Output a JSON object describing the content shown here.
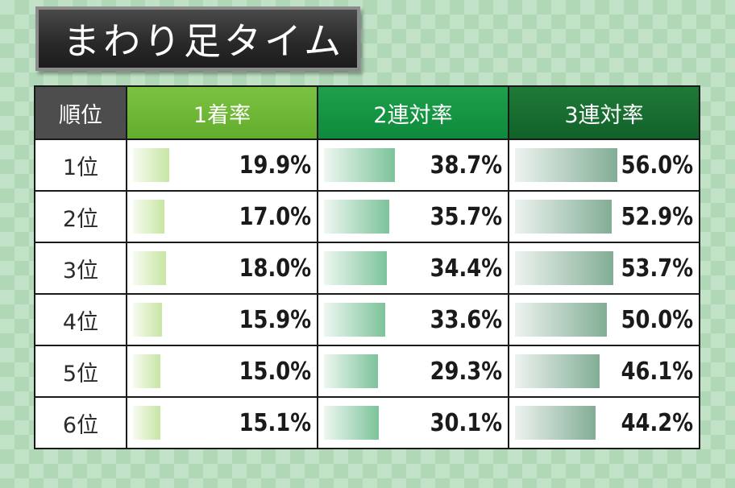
{
  "title": "まわり足タイム",
  "columns": {
    "rank": "順位",
    "win": "1着率",
    "place2": "2連対率",
    "place3": "3連対率"
  },
  "colors": {
    "win_header": "#6cb535",
    "place2_header": "#139443",
    "place3_header": "#186e30",
    "rank_header": "#4d4d4d"
  },
  "rows": [
    {
      "rank": "1位",
      "win_label": "19.9%",
      "place2_label": "38.7%",
      "place3_label": "56.0%"
    },
    {
      "rank": "2位",
      "win_label": "17.0%",
      "place2_label": "35.7%",
      "place3_label": "52.9%"
    },
    {
      "rank": "3位",
      "win_label": "18.0%",
      "place2_label": "34.4%",
      "place3_label": "53.7%"
    },
    {
      "rank": "4位",
      "win_label": "15.9%",
      "place2_label": "33.6%",
      "place3_label": "50.0%"
    },
    {
      "rank": "5位",
      "win_label": "15.0%",
      "place2_label": "29.3%",
      "place3_label": "46.1%"
    },
    {
      "rank": "6位",
      "win_label": "15.1%",
      "place2_label": "30.1%",
      "place3_label": "44.2%"
    }
  ],
  "chart_data": {
    "type": "table",
    "title": "まわり足タイム",
    "categories": [
      "1位",
      "2位",
      "3位",
      "4位",
      "5位",
      "6位"
    ],
    "series": [
      {
        "name": "1着率",
        "values": [
          19.9,
          17.0,
          18.0,
          15.9,
          15.0,
          15.1
        ]
      },
      {
        "name": "2連対率",
        "values": [
          38.7,
          35.7,
          34.4,
          33.6,
          29.3,
          30.1
        ]
      },
      {
        "name": "3連対率",
        "values": [
          56.0,
          52.9,
          53.7,
          50.0,
          46.1,
          44.2
        ]
      }
    ],
    "xlabel": "",
    "ylabel": ""
  }
}
